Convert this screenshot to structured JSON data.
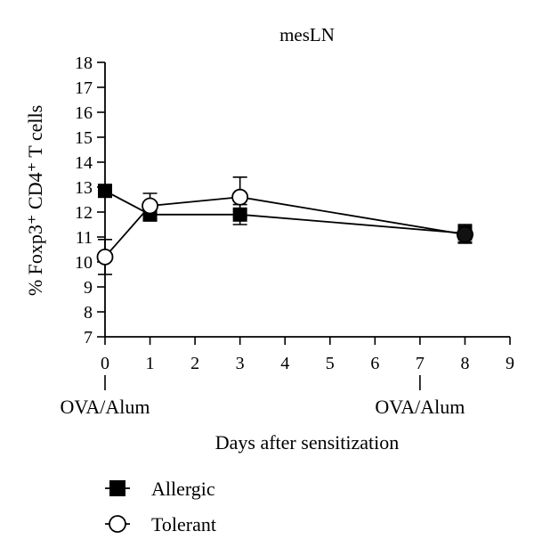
{
  "chart_data": {
    "type": "line",
    "title": "mesLN",
    "xlabel": "Days after sensitization",
    "ylabel": "% Foxp3⁺ CD4⁺ T cells",
    "xlim": [
      0,
      9
    ],
    "ylim": [
      7,
      18
    ],
    "x_ticks": [
      "0",
      "1",
      "2",
      "3",
      "4",
      "5",
      "6",
      "7",
      "8",
      "9"
    ],
    "y_ticks": [
      "7",
      "8",
      "9",
      "10",
      "11",
      "12",
      "13",
      "14",
      "15",
      "16",
      "17",
      "18"
    ],
    "grid": false,
    "legend_position": "bottom-left",
    "annotations": [
      {
        "text": "OVA/Alum",
        "x": 0
      },
      {
        "text": "OVA/Alum",
        "x": 7
      }
    ],
    "series": [
      {
        "name": "Allergic",
        "marker": "filled-square",
        "x": [
          0,
          1,
          3,
          8
        ],
        "values": [
          12.85,
          11.9,
          11.9,
          11.15
        ],
        "error": [
          0.1,
          0.25,
          0.4,
          0.35
        ]
      },
      {
        "name": "Tolerant",
        "marker": "open-circle",
        "x": [
          0,
          1,
          3,
          8
        ],
        "values": [
          10.2,
          12.25,
          12.6,
          11.1
        ],
        "error": [
          0.7,
          0.5,
          0.8,
          0.35
        ]
      }
    ]
  }
}
